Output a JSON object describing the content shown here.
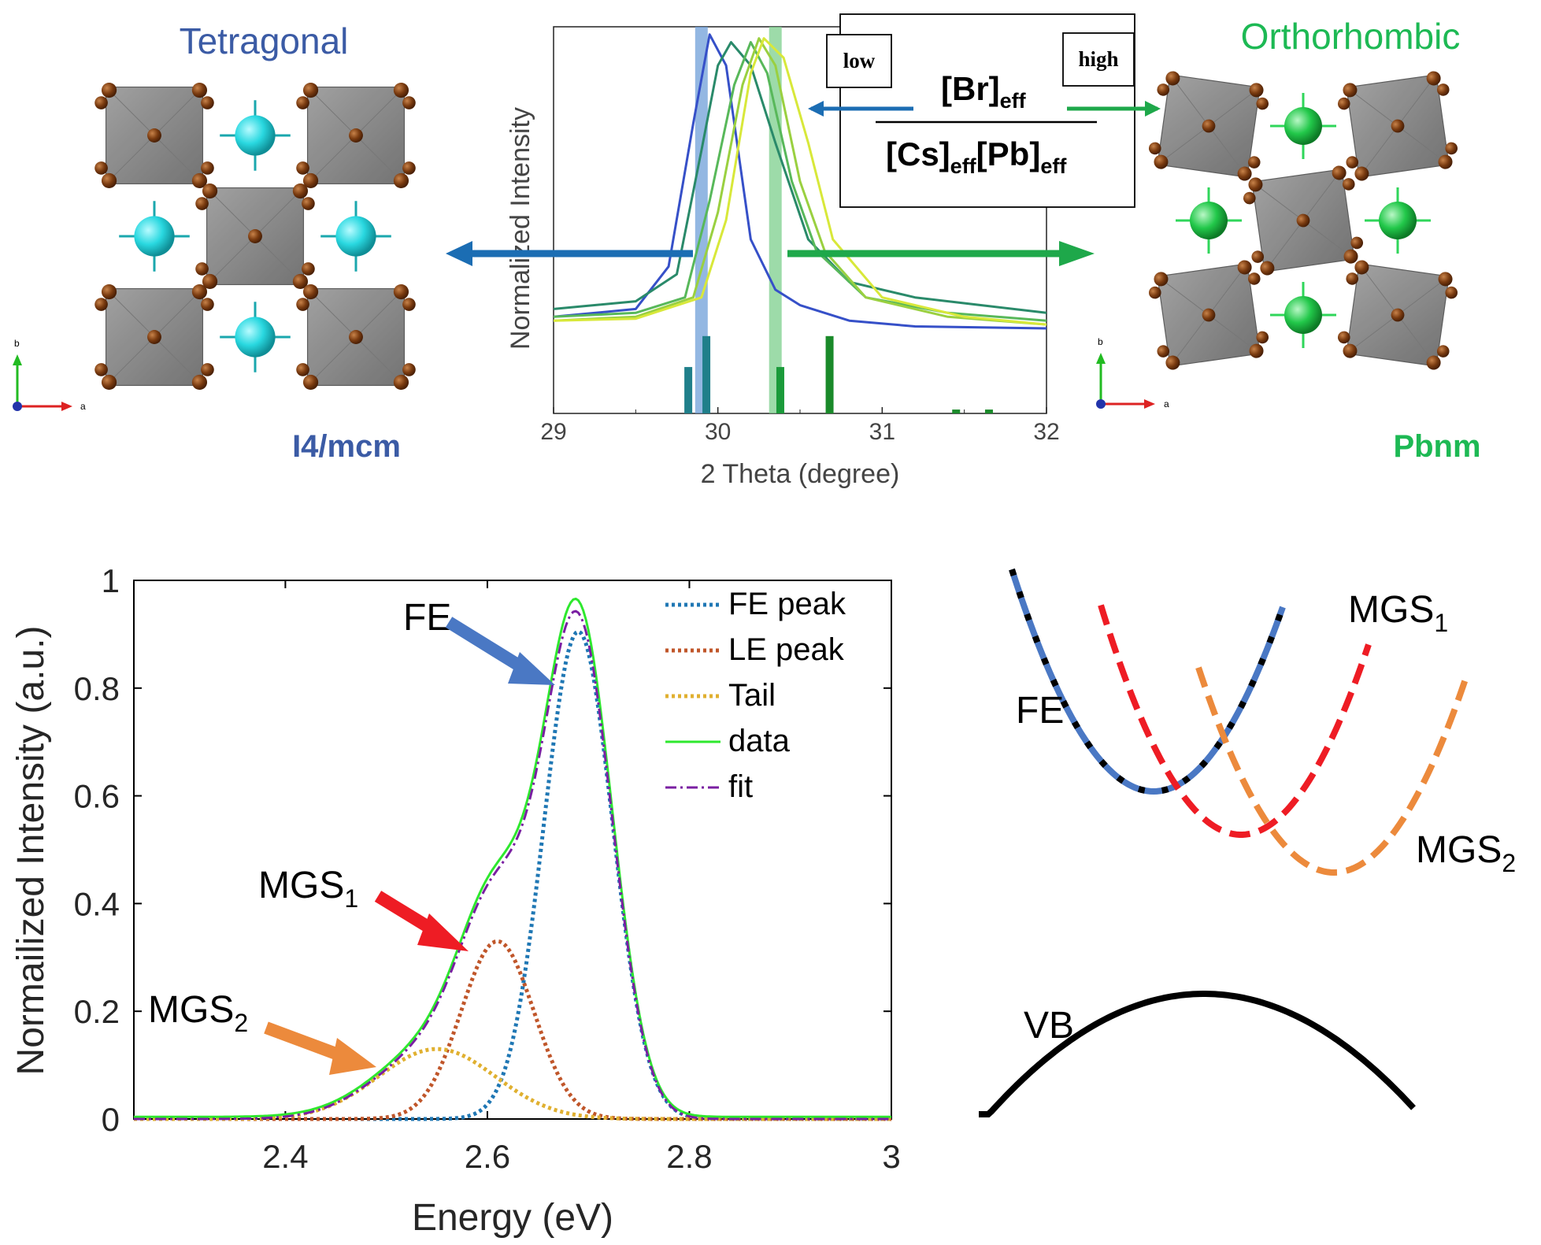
{
  "colors": {
    "tetragonal": "#3b5ba5",
    "orthorhombic": "#1db954",
    "arrow_blue": "#1b6db3",
    "arrow_green": "#1ea84a",
    "fe_blue": "#4a78c4",
    "mgs1_red": "#ee1c24",
    "mgs2_orange": "#ec8a3c",
    "fe_peak": "#1f77b4",
    "le_peak": "#c0562a",
    "tail": "#e0b030",
    "data": "#2ee82e",
    "fit": "#7a1fa2",
    "octahedron": "#8a8a8a",
    "br_atom": "#7a3b10",
    "cs_tetragonal": "#29d8e0",
    "cs_orthorhombic": "#22c84a"
  },
  "top": {
    "left_phase": {
      "name": "Tetragonal",
      "space_group": "I4/mcm",
      "axis_b": "b",
      "axis_a": "a",
      "cs_icon": "cyan-cs-atom",
      "octahedron_icon": "pbbr6-octahedron"
    },
    "right_phase": {
      "name": "Orthorhombic",
      "space_group": "Pbnm",
      "axis_b": "b",
      "axis_a": "a",
      "cs_icon": "green-cs-atom",
      "octahedron_icon": "pbbr6-octahedron"
    },
    "ratio_box": {
      "low": "low",
      "high": "high",
      "num_base": "[Br]",
      "num_sub": "eff",
      "den_base1": "[Cs]",
      "den_sub1": "eff",
      "den_base2": "[Pb]",
      "den_sub2": "eff"
    }
  },
  "chart_data": [
    {
      "type": "line",
      "xlabel": "2 Theta (degree)",
      "ylabel": "Normalized Intensity",
      "xlim": [
        29,
        32
      ],
      "xticks": [
        "29",
        "30",
        "31",
        "32"
      ],
      "y_ticks_shown": false,
      "highlight_bands": [
        {
          "x": 29.9,
          "color": "#6f9fd8"
        },
        {
          "x": 30.35,
          "color": "#7ccf8c"
        }
      ],
      "series_note": "five XRD patterns, colored blue to yellow-green",
      "series": [
        {
          "color": "#3650c8",
          "peak": 29.95,
          "values": [
            [
              29.0,
              0.25
            ],
            [
              29.5,
              0.27
            ],
            [
              29.7,
              0.38
            ],
            [
              29.85,
              0.75
            ],
            [
              29.95,
              0.98
            ],
            [
              30.05,
              0.9
            ],
            [
              30.2,
              0.45
            ],
            [
              30.35,
              0.32
            ],
            [
              30.5,
              0.28
            ],
            [
              30.8,
              0.24
            ],
            [
              31.2,
              0.225
            ],
            [
              32.0,
              0.22
            ]
          ]
        },
        {
          "color": "#2a8a6a",
          "peak": 30.08,
          "values": [
            [
              29.0,
              0.27
            ],
            [
              29.5,
              0.29
            ],
            [
              29.75,
              0.36
            ],
            [
              29.9,
              0.68
            ],
            [
              30.0,
              0.9
            ],
            [
              30.08,
              0.96
            ],
            [
              30.2,
              0.9
            ],
            [
              30.35,
              0.7
            ],
            [
              30.55,
              0.45
            ],
            [
              30.8,
              0.34
            ],
            [
              31.2,
              0.3
            ],
            [
              31.6,
              0.28
            ],
            [
              32.0,
              0.26
            ]
          ]
        },
        {
          "color": "#58b85a",
          "peak": 30.2,
          "values": [
            [
              29.0,
              0.25
            ],
            [
              29.5,
              0.26
            ],
            [
              29.8,
              0.3
            ],
            [
              29.95,
              0.55
            ],
            [
              30.1,
              0.85
            ],
            [
              30.2,
              0.96
            ],
            [
              30.3,
              0.88
            ],
            [
              30.45,
              0.6
            ],
            [
              30.6,
              0.42
            ],
            [
              30.9,
              0.3
            ],
            [
              31.4,
              0.26
            ],
            [
              32.0,
              0.24
            ]
          ]
        },
        {
          "color": "#9ad040",
          "peak": 30.25,
          "values": [
            [
              29.0,
              0.24
            ],
            [
              29.5,
              0.25
            ],
            [
              29.85,
              0.3
            ],
            [
              30.0,
              0.52
            ],
            [
              30.15,
              0.85
            ],
            [
              30.25,
              0.97
            ],
            [
              30.35,
              0.9
            ],
            [
              30.5,
              0.6
            ],
            [
              30.65,
              0.42
            ],
            [
              30.9,
              0.3
            ],
            [
              31.4,
              0.25
            ],
            [
              32.0,
              0.23
            ]
          ]
        },
        {
          "color": "#d8e83a",
          "peak": 30.28,
          "values": [
            [
              29.0,
              0.24
            ],
            [
              29.5,
              0.245
            ],
            [
              29.9,
              0.3
            ],
            [
              30.05,
              0.5
            ],
            [
              30.2,
              0.88
            ],
            [
              30.28,
              0.97
            ],
            [
              30.4,
              0.92
            ],
            [
              30.55,
              0.7
            ],
            [
              30.7,
              0.45
            ],
            [
              31.0,
              0.3
            ],
            [
              31.5,
              0.25
            ],
            [
              32.0,
              0.23
            ]
          ]
        }
      ],
      "reference_bars": [
        {
          "x": 29.82,
          "h": 0.12,
          "color": "#1f7f8a"
        },
        {
          "x": 29.93,
          "h": 0.2,
          "color": "#1f7f8a"
        },
        {
          "x": 30.38,
          "h": 0.12,
          "color": "#1a9a3a"
        },
        {
          "x": 30.68,
          "h": 0.2,
          "color": "#1a8a2a"
        },
        {
          "x": 31.45,
          "h": 0.01,
          "color": "#1a8a2a"
        },
        {
          "x": 31.65,
          "h": 0.01,
          "color": "#1a8a2a"
        }
      ]
    },
    {
      "type": "line",
      "xlabel": "Energy (eV)",
      "ylabel": "Normailized Intensity (a.u.)",
      "xlim": [
        2.25,
        3.0
      ],
      "ylim": [
        0,
        1
      ],
      "xticks": [
        "2.4",
        "2.6",
        "2.8",
        "3"
      ],
      "yticks": [
        "0",
        "0.2",
        "0.4",
        "0.6",
        "0.8",
        "1"
      ],
      "legend_position": "top-right",
      "legend": [
        "FE peak",
        "LE peak",
        "Tail",
        "data",
        "fit"
      ],
      "series": [
        {
          "name": "FE peak",
          "style": "dotted",
          "color": "#1f77b4",
          "gauss": {
            "amp": 0.905,
            "center": 2.69,
            "sigma": 0.034
          }
        },
        {
          "name": "LE peak",
          "style": "dotted",
          "color": "#c0562a",
          "gauss": {
            "amp": 0.33,
            "center": 2.61,
            "sigma": 0.036
          }
        },
        {
          "name": "Tail",
          "style": "dotted",
          "color": "#e0b030",
          "gauss": {
            "amp": 0.13,
            "center": 2.55,
            "sigma": 0.058
          }
        },
        {
          "name": "data",
          "style": "solid",
          "color": "#2ee82e"
        },
        {
          "name": "fit",
          "style": "dashdot",
          "color": "#7a1fa2"
        }
      ],
      "annotations": [
        {
          "label": "FE",
          "sub": "",
          "color": "#4a78c4"
        },
        {
          "label": "MGS",
          "sub": "1",
          "color": "#ee1c24"
        },
        {
          "label": "MGS",
          "sub": "2",
          "color": "#ec8a3c"
        }
      ]
    }
  ],
  "schematic": {
    "fe_label": "FE",
    "mgs1_label": "MGS",
    "mgs1_sub": "1",
    "mgs2_label": "MGS",
    "mgs2_sub": "2",
    "vb_label": "VB"
  }
}
